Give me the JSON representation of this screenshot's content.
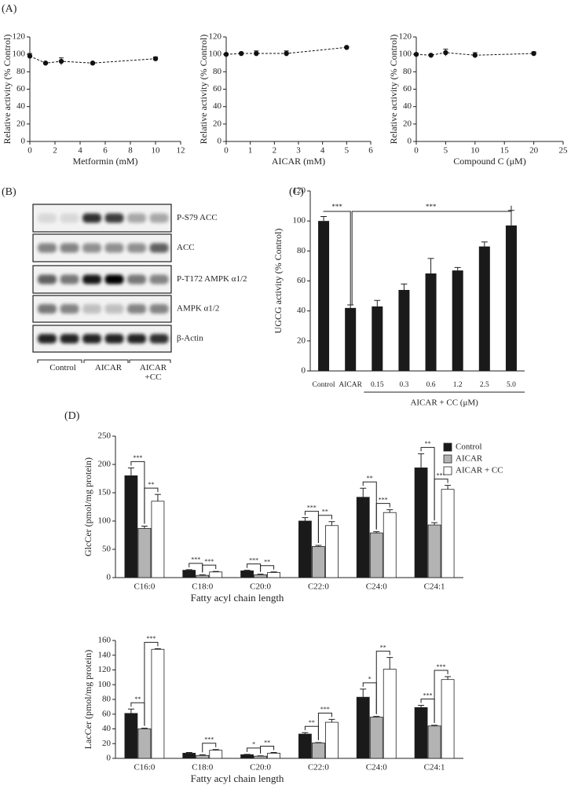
{
  "panel_labels": [
    "(A)",
    "(B)",
    "(C)",
    "(D)"
  ],
  "blot": {
    "bands": [
      "P-S79 ACC",
      "ACC",
      "P-T172 AMPK α1/2",
      "AMPK α1/2",
      "β-Actin"
    ],
    "groups": [
      "Control",
      "AICAR",
      "AICAR +CC"
    ]
  },
  "chart_data": [
    {
      "type": "line",
      "xlabel": "Metformin (mM)",
      "ylabel": "Relative activity (% Control)",
      "x": [
        0,
        1.25,
        2.5,
        5,
        10
      ],
      "values": [
        98,
        90,
        92,
        90,
        95
      ],
      "errors": [
        3,
        1,
        4,
        1,
        2
      ],
      "xlim": [
        0,
        12
      ],
      "xticks": [
        0,
        2,
        4,
        6,
        8,
        10,
        12
      ],
      "ylim": [
        0,
        120
      ],
      "yticks": [
        0,
        20,
        40,
        60,
        80,
        100,
        120
      ],
      "color": "#111111"
    },
    {
      "type": "line",
      "xlabel": "AICAR (mM)",
      "ylabel": "Relative activity (% Control)",
      "x": [
        0,
        0.625,
        1.25,
        2.5,
        5
      ],
      "values": [
        100,
        101,
        101,
        101,
        108
      ],
      "errors": [
        1,
        1,
        3,
        3,
        1
      ],
      "xlim": [
        0,
        6
      ],
      "xticks": [
        0,
        1,
        2,
        3,
        4,
        5,
        6
      ],
      "ylim": [
        0,
        120
      ],
      "yticks": [
        0,
        20,
        40,
        60,
        80,
        100,
        120
      ],
      "color": "#111111"
    },
    {
      "type": "line",
      "xlabel": "Compound C (μM)",
      "ylabel": "Relative activity (% Control)",
      "x": [
        0,
        2.5,
        5,
        10,
        20
      ],
      "values": [
        100,
        99,
        102,
        99,
        101
      ],
      "errors": [
        1,
        1,
        4,
        3,
        2
      ],
      "xlim": [
        0,
        25
      ],
      "xticks": [
        0,
        5,
        10,
        15,
        20,
        25
      ],
      "ylim": [
        0,
        120
      ],
      "yticks": [
        0,
        20,
        40,
        60,
        80,
        100,
        120
      ],
      "color": "#111111"
    },
    {
      "type": "bar",
      "ylabel": "UGCG activity (% Control)",
      "group_label": "AICAR + CC (μM)",
      "categories": [
        "Control",
        "AICAR",
        "0.15",
        "0.3",
        "0.6",
        "1.2",
        "2.5",
        "5.0"
      ],
      "values": [
        100,
        42,
        43,
        54,
        65,
        67,
        83,
        97
      ],
      "errors": [
        3,
        2,
        4,
        4,
        10,
        2,
        3,
        10
      ],
      "annotations": [
        "***",
        "***"
      ],
      "color": "#1a1a1a",
      "ylim": [
        0,
        120
      ],
      "yticks": [
        0,
        20,
        40,
        60,
        80,
        100,
        120
      ]
    },
    {
      "type": "grouped-bar",
      "ylabel": "GlcCer (pmol/mg protein)",
      "xlabel": "Fatty acyl chain length",
      "categories": [
        "C16:0",
        "C18:0",
        "C20:0",
        "C22:0",
        "C24:0",
        "C24:1"
      ],
      "series": [
        {
          "name": "Control",
          "color": "#1a1a1a",
          "values": [
            180,
            13,
            12,
            100,
            142,
            194
          ],
          "errors": [
            14,
            1,
            1,
            6,
            16,
            25
          ]
        },
        {
          "name": "AICAR",
          "color": "#b3b3b3",
          "values": [
            87,
            4,
            5,
            55,
            79,
            93
          ],
          "errors": [
            4,
            1,
            1,
            2,
            2,
            4
          ]
        },
        {
          "name": "AICAR + CC",
          "color": "#ffffff",
          "values": [
            135,
            10,
            9,
            92,
            115,
            156
          ],
          "errors": [
            12,
            1,
            1,
            7,
            5,
            7
          ]
        }
      ],
      "significance": [
        [
          "***",
          "**"
        ],
        [
          "***",
          "***"
        ],
        [
          "***",
          "**"
        ],
        [
          "***",
          "**"
        ],
        [
          "**",
          "***"
        ],
        [
          "**",
          "***"
        ]
      ],
      "legend": "upper right",
      "ylim": [
        0,
        250
      ],
      "yticks": [
        0,
        50,
        100,
        150,
        200,
        250
      ]
    },
    {
      "type": "grouped-bar",
      "ylabel": "LacCer (pmol/mg protein)",
      "xlabel": "Fatty acyl chain length",
      "categories": [
        "C16:0",
        "C18:0",
        "C20:0",
        "C22:0",
        "C24:0",
        "C24:1"
      ],
      "series": [
        {
          "color": "#1a1a1a",
          "values": [
            61,
            7,
            5,
            33,
            83,
            69
          ],
          "errors": [
            6,
            1,
            0.5,
            2,
            11,
            3
          ]
        },
        {
          "color": "#b3b3b3",
          "values": [
            40,
            4,
            3,
            21,
            56,
            44
          ],
          "errors": [
            1,
            1,
            0.5,
            0.5,
            1,
            1
          ]
        },
        {
          "color": "#ffffff",
          "values": [
            148,
            11,
            7,
            49,
            121,
            107
          ],
          "errors": [
            1,
            1,
            1,
            4,
            16,
            4
          ]
        }
      ],
      "significance": [
        [
          "**",
          "***"
        ],
        [
          null,
          "***"
        ],
        [
          "*",
          "**"
        ],
        [
          "**",
          "***"
        ],
        [
          "*",
          "**"
        ],
        [
          "***",
          "***"
        ]
      ],
      "ylim": [
        0,
        160
      ],
      "yticks": [
        0,
        20,
        40,
        60,
        80,
        100,
        120,
        140,
        160
      ]
    }
  ]
}
